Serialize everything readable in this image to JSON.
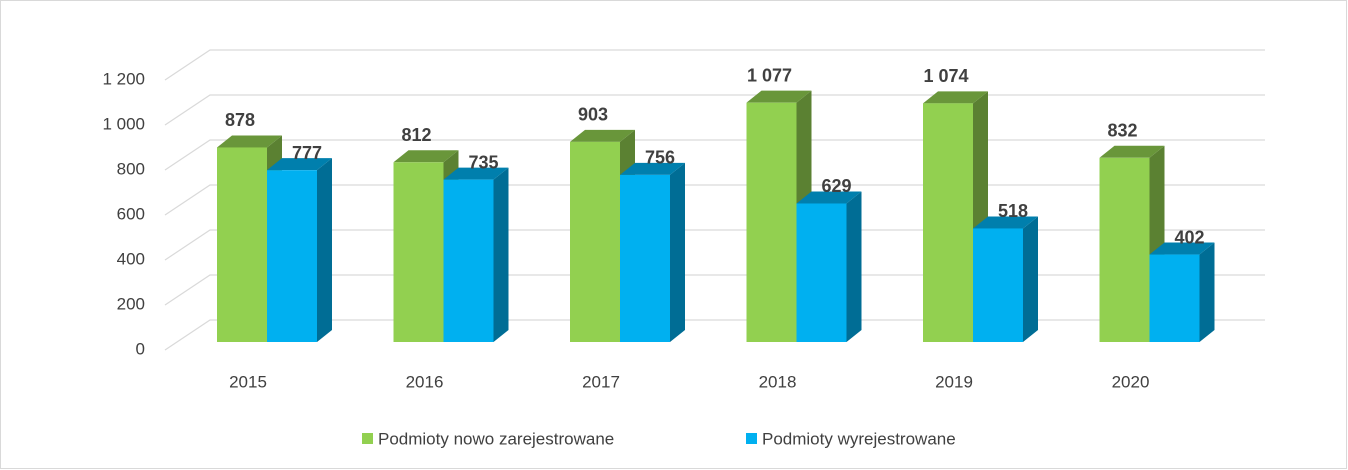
{
  "chart_data": {
    "type": "bar3d",
    "categories": [
      "2015",
      "2016",
      "2017",
      "2018",
      "2019",
      "2020"
    ],
    "series": [
      {
        "name": "Podmioty nowo zarejestrowane",
        "color": "#92d050",
        "values": [
          878,
          812,
          903,
          1077,
          1074,
          832
        ],
        "value_labels": [
          "878",
          "812",
          "903",
          "1 077",
          "1 074",
          "832"
        ]
      },
      {
        "name": "Podmioty wyrejestrowane",
        "color": "#00b0f0",
        "values": [
          777,
          735,
          756,
          629,
          518,
          402
        ],
        "value_labels": [
          "777",
          "735",
          "756",
          "629",
          "518",
          "402"
        ]
      }
    ],
    "ylim": [
      0,
      1200
    ],
    "yticks": [
      0,
      200,
      400,
      600,
      800,
      {
        "value": 1000,
        "label": "1 000"
      },
      {
        "value": 1200,
        "label": "1 200"
      }
    ],
    "grid": true,
    "legend": "bottom"
  }
}
